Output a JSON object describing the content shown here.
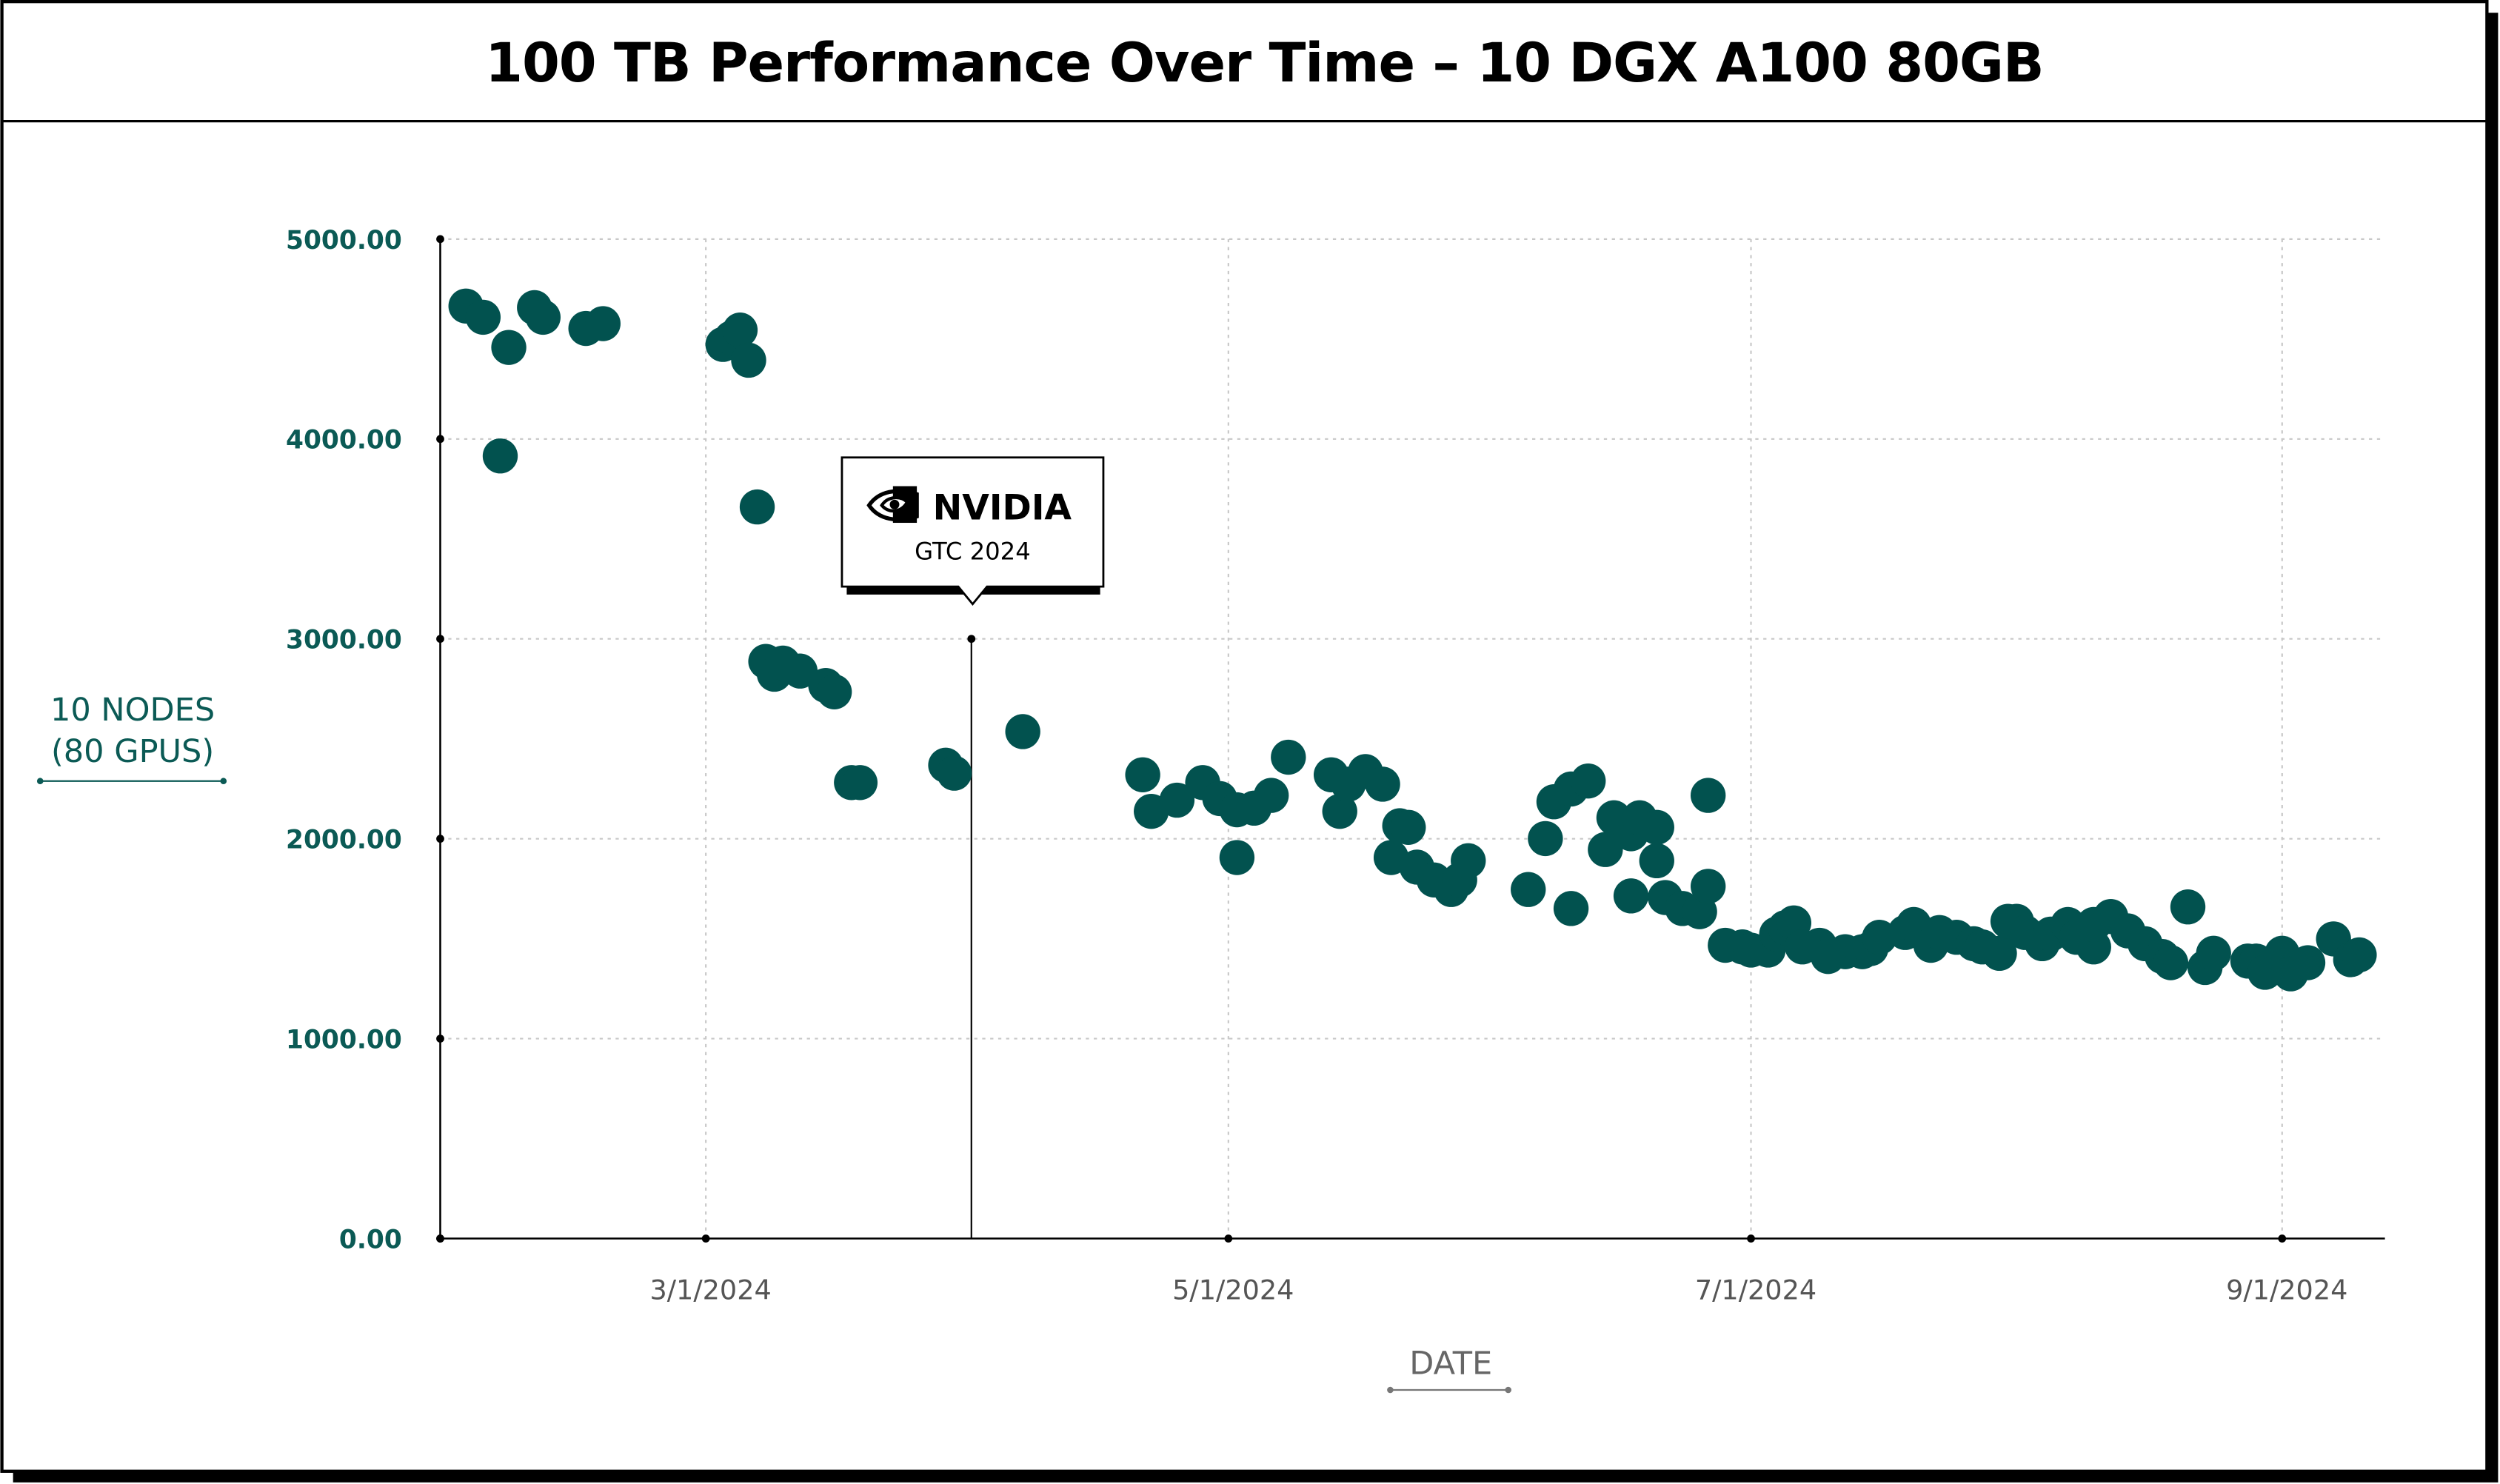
{
  "chart_data": {
    "type": "scatter",
    "title": "100 TB Performance Over Time – 10 DGX A100 80GB",
    "xlabel": "DATE",
    "ylabel": [
      "10 NODES",
      "(80 GPUS)"
    ],
    "x_unit": "days since 3/1/2024",
    "xlim": [
      -31,
      196
    ],
    "ylim": [
      0,
      5000
    ],
    "grid": true,
    "yticks": [
      {
        "value": 0,
        "label": "0.00"
      },
      {
        "value": 1000,
        "label": "1000.00"
      },
      {
        "value": 2000,
        "label": "2000.00"
      },
      {
        "value": 3000,
        "label": "3000.00"
      },
      {
        "value": 4000,
        "label": "4000.00"
      },
      {
        "value": 5000,
        "label": "5000.00"
      }
    ],
    "xticks": [
      {
        "value": 0,
        "label": "3/1/2024"
      },
      {
        "value": 61,
        "label": "5/1/2024"
      },
      {
        "value": 122,
        "label": "7/1/2024"
      },
      {
        "value": 184,
        "label": "9/1/2024"
      }
    ],
    "annotation": {
      "x": 31,
      "y": 3000,
      "logo_text": "NVIDIA",
      "label": "GTC 2024"
    },
    "point_color": "#02524f",
    "points": [
      [
        -28,
        4665
      ],
      [
        -26,
        4609
      ],
      [
        -23,
        4458
      ],
      [
        -24,
        3915
      ],
      [
        -20,
        4657
      ],
      [
        -19,
        4609
      ],
      [
        -14,
        4553
      ],
      [
        -12,
        4577
      ],
      [
        2,
        4473
      ],
      [
        3,
        4505
      ],
      [
        4,
        4545
      ],
      [
        5,
        4394
      ],
      [
        6,
        3660
      ],
      [
        7,
        2887
      ],
      [
        8,
        2823
      ],
      [
        9,
        2879
      ],
      [
        11,
        2839
      ],
      [
        14,
        2767
      ],
      [
        15,
        2735
      ],
      [
        17,
        2281
      ],
      [
        18,
        2281
      ],
      [
        28,
        2368
      ],
      [
        29,
        2328
      ],
      [
        37,
        2536
      ],
      [
        51,
        2320
      ],
      [
        52,
        2137
      ],
      [
        55,
        2193
      ],
      [
        58,
        2281
      ],
      [
        60,
        2201
      ],
      [
        62,
        2145
      ],
      [
        62,
        1906
      ],
      [
        64,
        2153
      ],
      [
        66,
        2217
      ],
      [
        68,
        2408
      ],
      [
        73,
        2320
      ],
      [
        74,
        2137
      ],
      [
        75,
        2273
      ],
      [
        77,
        2336
      ],
      [
        79,
        2273
      ],
      [
        80,
        1906
      ],
      [
        81,
        2065
      ],
      [
        82,
        2057
      ],
      [
        83,
        1858
      ],
      [
        85,
        1794
      ],
      [
        87,
        1746
      ],
      [
        88,
        1794
      ],
      [
        89,
        1890
      ],
      [
        96,
        1746
      ],
      [
        98,
        2001
      ],
      [
        99,
        2185
      ],
      [
        101,
        1651
      ],
      [
        101,
        2249
      ],
      [
        103,
        2289
      ],
      [
        105,
        1946
      ],
      [
        106,
        2105
      ],
      [
        108,
        1714
      ],
      [
        108,
        2025
      ],
      [
        109,
        2105
      ],
      [
        111,
        2057
      ],
      [
        111,
        1890
      ],
      [
        112,
        1706
      ],
      [
        114,
        1651
      ],
      [
        116,
        1635
      ],
      [
        117,
        1762
      ],
      [
        117,
        2217
      ],
      [
        119,
        1467
      ],
      [
        121,
        1459
      ],
      [
        122,
        1443
      ],
      [
        124,
        1443
      ],
      [
        125,
        1523
      ],
      [
        126,
        1555
      ],
      [
        127,
        1579
      ],
      [
        128,
        1459
      ],
      [
        130,
        1467
      ],
      [
        131,
        1411
      ],
      [
        133,
        1435
      ],
      [
        135,
        1435
      ],
      [
        136,
        1451
      ],
      [
        137,
        1507
      ],
      [
        140,
        1531
      ],
      [
        141,
        1571
      ],
      [
        143,
        1467
      ],
      [
        144,
        1531
      ],
      [
        146,
        1507
      ],
      [
        148,
        1475
      ],
      [
        149,
        1459
      ],
      [
        151,
        1427
      ],
      [
        152,
        1587
      ],
      [
        153,
        1587
      ],
      [
        154,
        1531
      ],
      [
        156,
        1475
      ],
      [
        157,
        1523
      ],
      [
        159,
        1571
      ],
      [
        160,
        1507
      ],
      [
        162,
        1459
      ],
      [
        162,
        1571
      ],
      [
        164,
        1611
      ],
      [
        166,
        1539
      ],
      [
        168,
        1475
      ],
      [
        170,
        1411
      ],
      [
        171,
        1380
      ],
      [
        173,
        1659
      ],
      [
        175,
        1356
      ],
      [
        176,
        1427
      ],
      [
        180,
        1388
      ],
      [
        181,
        1388
      ],
      [
        182,
        1332
      ],
      [
        184,
        1427
      ],
      [
        185,
        1324
      ],
      [
        187,
        1380
      ],
      [
        190,
        1499
      ],
      [
        192,
        1395
      ],
      [
        193,
        1419
      ]
    ]
  }
}
